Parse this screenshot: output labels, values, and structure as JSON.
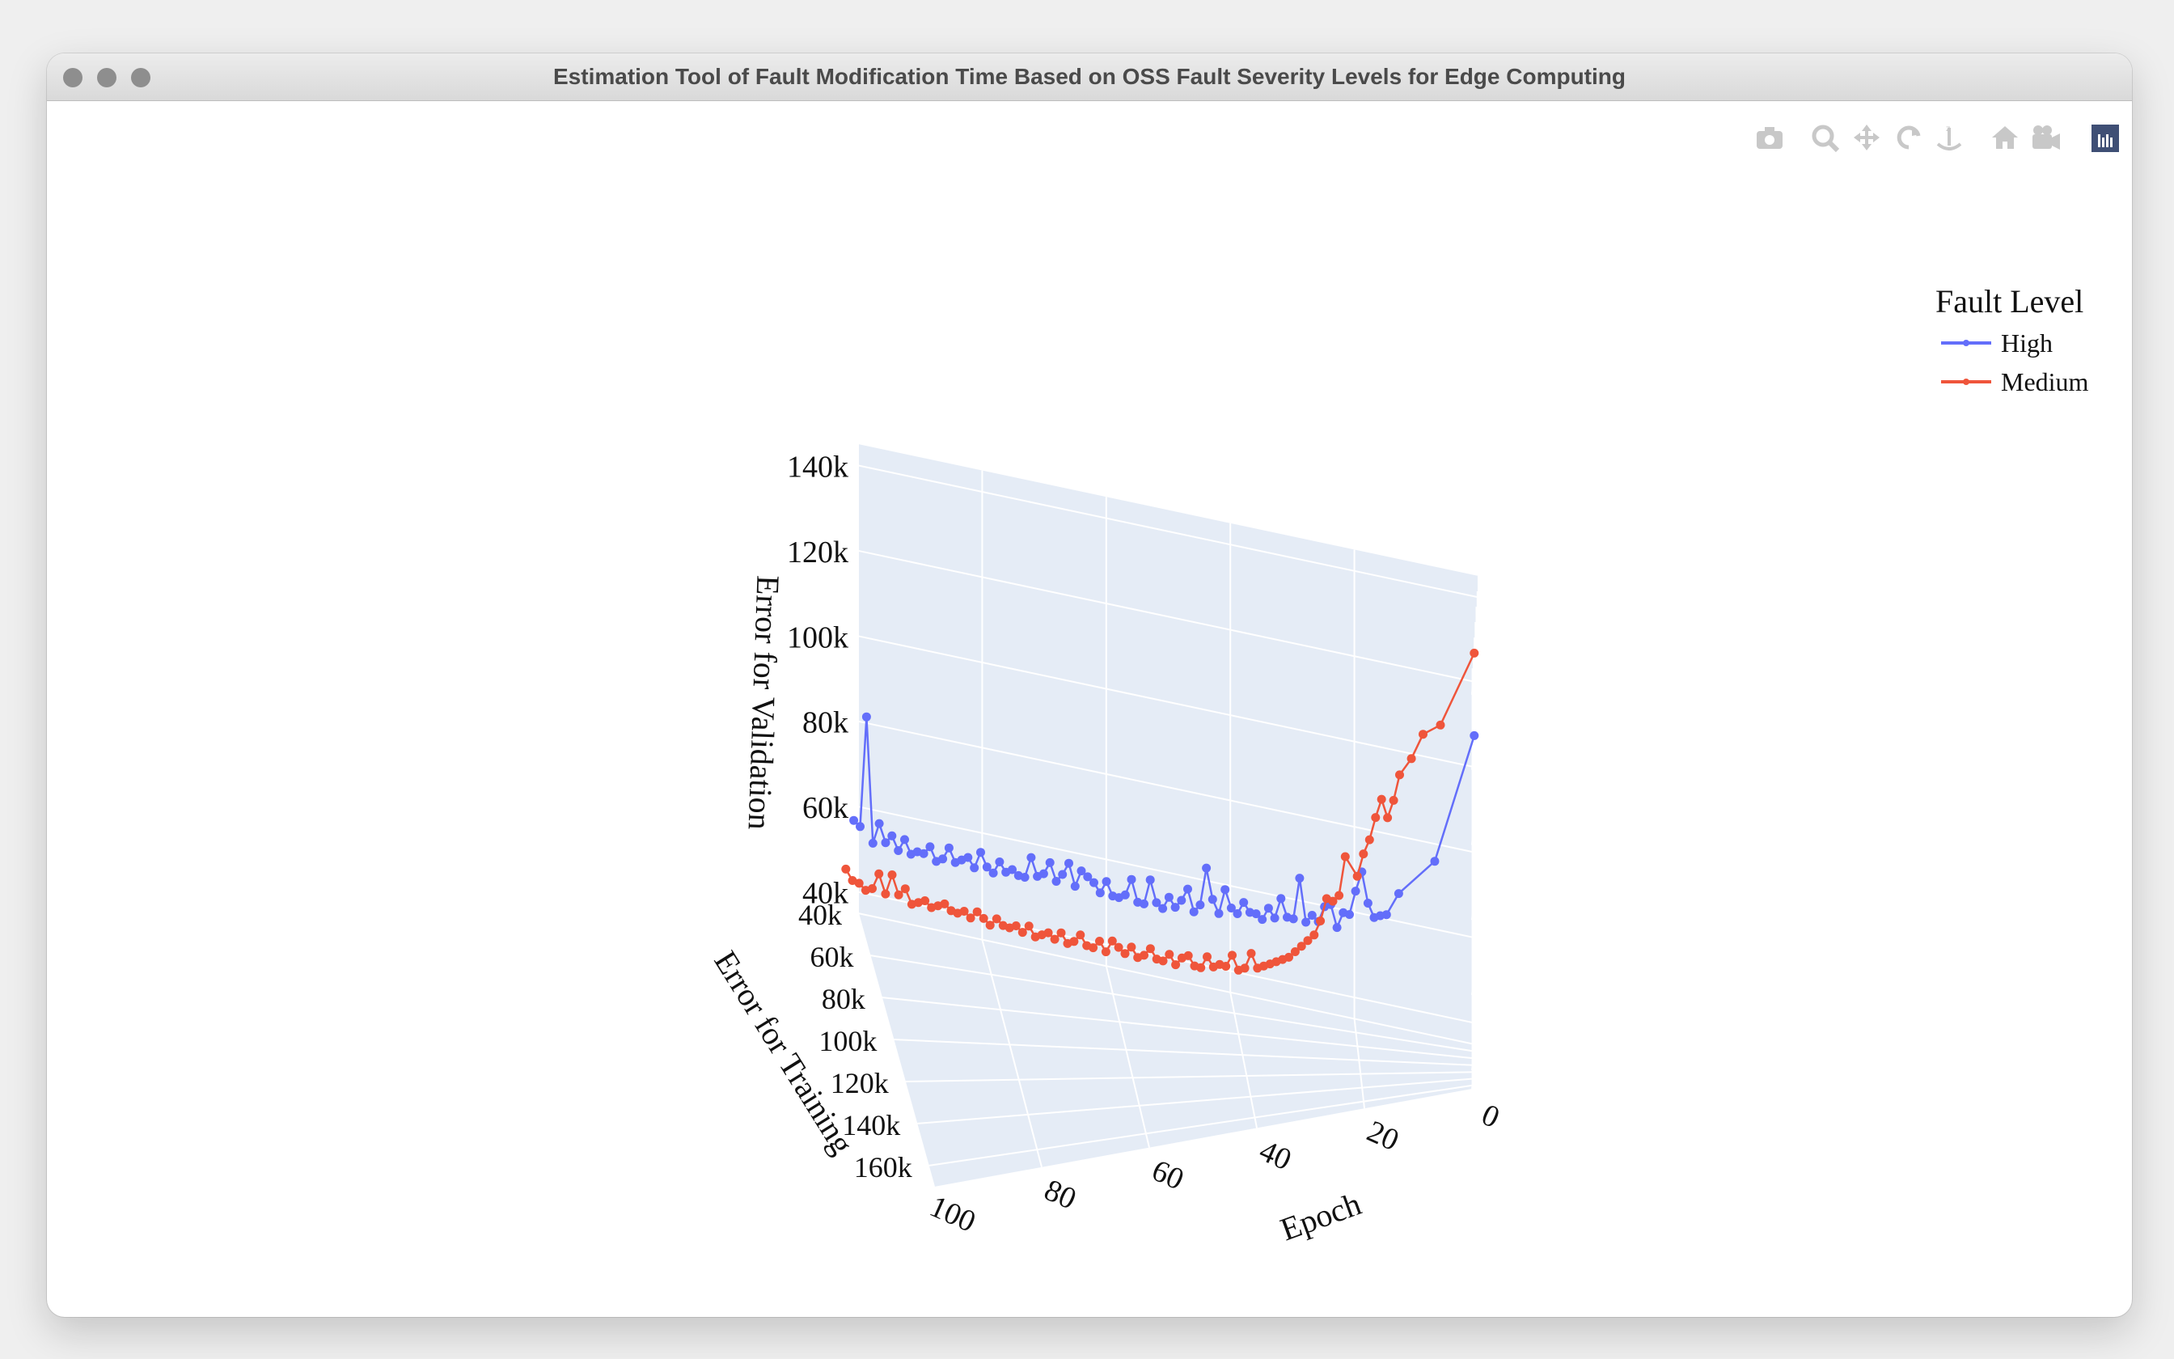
{
  "window": {
    "title": "Estimation Tool of Fault Modification Time Based on OSS Fault Severity Levels for Edge Computing"
  },
  "modebar": {
    "icons": [
      "camera-icon",
      "zoom-icon",
      "pan-icon",
      "orbit-rotation-icon",
      "turntable-rotation-icon",
      "reset-home-icon",
      "camera-view-icon",
      "plotly-logo-icon"
    ],
    "logo_color": "#3f4f75",
    "icon_color": "#c8c8c8"
  },
  "chart_data": {
    "type": "scatter3d-lines",
    "legend": {
      "title": "Fault Level",
      "position": "top-right"
    },
    "axes": {
      "x": {
        "title": "Epoch",
        "range": [
          0,
          100
        ],
        "ticks": [
          "0",
          "20",
          "40",
          "60",
          "80",
          "100"
        ],
        "reversed": true
      },
      "y": {
        "title": "Error for Training",
        "range": [
          40000,
          170000
        ],
        "ticks": [
          "40k",
          "60k",
          "80k",
          "100k",
          "120k",
          "140k",
          "160k"
        ]
      },
      "z": {
        "title": "Error for Validation",
        "range": [
          35000,
          145000
        ],
        "ticks": [
          "40k",
          "60k",
          "80k",
          "100k",
          "120k",
          "140k"
        ]
      }
    },
    "scene_background": "#e5ecf6",
    "grid": true,
    "series": [
      {
        "name": "High",
        "color": "#636efa",
        "points": [
          [
            0,
            125000,
            121000
          ],
          [
            7,
            80000,
            82000
          ],
          [
            13,
            67000,
            71000
          ],
          [
            15,
            64000,
            65000
          ],
          [
            16,
            61000,
            64000
          ],
          [
            17,
            59000,
            63000
          ],
          [
            18,
            58000,
            66000
          ],
          [
            19,
            57000,
            73000
          ],
          [
            20,
            56000,
            68000
          ],
          [
            21,
            55000,
            62000
          ],
          [
            22,
            54000,
            62000
          ],
          [
            23,
            53000,
            58000
          ],
          [
            24,
            52000,
            63000
          ],
          [
            25,
            51000,
            62000
          ],
          [
            26,
            50000,
            58000
          ],
          [
            27,
            49000,
            59000
          ],
          [
            28,
            48500,
            57000
          ],
          [
            29,
            48000,
            67000
          ],
          [
            30,
            47500,
            57000
          ],
          [
            31,
            47000,
            57000
          ],
          [
            32,
            46500,
            61000
          ],
          [
            33,
            46000,
            56000
          ],
          [
            34,
            45800,
            58000
          ],
          [
            35,
            45600,
            55000
          ],
          [
            36,
            45400,
            56000
          ],
          [
            37,
            45200,
            56000
          ],
          [
            38,
            45000,
            58000
          ],
          [
            39,
            44800,
            55000
          ],
          [
            40,
            44600,
            56000
          ],
          [
            41,
            44400,
            60000
          ],
          [
            42,
            44200,
            54000
          ],
          [
            43,
            44000,
            57000
          ],
          [
            44,
            43800,
            64000
          ],
          [
            45,
            43600,
            55000
          ],
          [
            46,
            43400,
            53000
          ],
          [
            47,
            43200,
            58000
          ],
          [
            48,
            43000,
            55000
          ],
          [
            49,
            42800,
            53000
          ],
          [
            50,
            42600,
            55000
          ],
          [
            51,
            42400,
            52000
          ],
          [
            52,
            42200,
            53000
          ],
          [
            53,
            42000,
            58000
          ],
          [
            54,
            41800,
            52000
          ],
          [
            55,
            41600,
            52000
          ],
          [
            56,
            41400,
            57000
          ],
          [
            57,
            41200,
            53000
          ],
          [
            58,
            41000,
            52000
          ],
          [
            59,
            40800,
            52000
          ],
          [
            60,
            40600,
            55000
          ],
          [
            61,
            40400,
            52000
          ],
          [
            62,
            40200,
            54000
          ],
          [
            63,
            40000,
            55000
          ],
          [
            64,
            39800,
            56000
          ],
          [
            65,
            39600,
            52000
          ],
          [
            66,
            39400,
            57000
          ],
          [
            67,
            39200,
            54000
          ],
          [
            68,
            39000,
            52000
          ],
          [
            69,
            38800,
            56000
          ],
          [
            70,
            38600,
            53000
          ],
          [
            71,
            38400,
            52000
          ],
          [
            72,
            38200,
            56000
          ],
          [
            73,
            38000,
            51000
          ],
          [
            74,
            37800,
            51000
          ],
          [
            75,
            37600,
            52000
          ],
          [
            76,
            37400,
            51000
          ],
          [
            77,
            37200,
            53000
          ],
          [
            78,
            37000,
            50000
          ],
          [
            79,
            36800,
            51000
          ],
          [
            80,
            36600,
            54000
          ],
          [
            81,
            36400,
            50000
          ],
          [
            82,
            36200,
            52000
          ],
          [
            83,
            36000,
            51000
          ],
          [
            84,
            35800,
            50000
          ],
          [
            85,
            35600,
            53000
          ],
          [
            86,
            35400,
            50000
          ],
          [
            87,
            35200,
            49000
          ],
          [
            88,
            35000,
            52000
          ],
          [
            89,
            34800,
            50000
          ],
          [
            90,
            34600,
            50000
          ],
          [
            91,
            34400,
            49000
          ],
          [
            92,
            34200,
            52000
          ],
          [
            93,
            34000,
            49000
          ],
          [
            94,
            33800,
            52000
          ],
          [
            95,
            33600,
            50000
          ],
          [
            96,
            33400,
            54000
          ],
          [
            97,
            33200,
            49000
          ],
          [
            98,
            33000,
            78000
          ],
          [
            99,
            32800,
            52000
          ],
          [
            100,
            32600,
            53000
          ]
        ]
      },
      {
        "name": "Medium",
        "color": "#ef553b",
        "points": [
          [
            0,
            125000,
            142000
          ],
          [
            6,
            110000,
            121000
          ],
          [
            9,
            102000,
            117000
          ],
          [
            11,
            98000,
            110000
          ],
          [
            13,
            94000,
            105000
          ],
          [
            14,
            91000,
            98000
          ],
          [
            15,
            88000,
            93000
          ],
          [
            16,
            86000,
            97000
          ],
          [
            17,
            84000,
            92000
          ],
          [
            18,
            82000,
            86000
          ],
          [
            19,
            80000,
            82000
          ],
          [
            20,
            78000,
            76000
          ],
          [
            22,
            76000,
            80000
          ],
          [
            23,
            74000,
            70000
          ],
          [
            24,
            72000,
            68000
          ],
          [
            25,
            70000,
            68000
          ],
          [
            26,
            68000,
            62000
          ],
          [
            27,
            66000,
            58000
          ],
          [
            28,
            64000,
            56000
          ],
          [
            29,
            62000,
            54000
          ],
          [
            30,
            60000,
            52000
          ],
          [
            31,
            58000,
            50000
          ],
          [
            32,
            57000,
            49000
          ],
          [
            33,
            56000,
            48000
          ],
          [
            34,
            55000,
            47000
          ],
          [
            35,
            54000,
            46000
          ],
          [
            36,
            53000,
            45000
          ],
          [
            37,
            52000,
            48000
          ],
          [
            38,
            51000,
            44000
          ],
          [
            39,
            50000,
            43000
          ],
          [
            40,
            49000,
            46000
          ],
          [
            41,
            48500,
            43000
          ],
          [
            42,
            48000,
            43000
          ],
          [
            43,
            47500,
            42000
          ],
          [
            44,
            47000,
            44000
          ],
          [
            45,
            46500,
            41000
          ],
          [
            46,
            46000,
            41000
          ],
          [
            47,
            45500,
            43000
          ],
          [
            48,
            45000,
            42000
          ],
          [
            49,
            44500,
            40000
          ],
          [
            50,
            44000,
            42000
          ],
          [
            51,
            43500,
            40000
          ],
          [
            52,
            43000,
            40000
          ],
          [
            53,
            42500,
            42000
          ],
          [
            54,
            42000,
            40000
          ],
          [
            55,
            41500,
            39000
          ],
          [
            56,
            41000,
            41000
          ],
          [
            57,
            40500,
            39000
          ],
          [
            58,
            40000,
            40000
          ],
          [
            59,
            39500,
            41000
          ],
          [
            60,
            39000,
            38000
          ],
          [
            61,
            38500,
            40000
          ],
          [
            62,
            38000,
            38000
          ],
          [
            63,
            37500,
            38000
          ],
          [
            64,
            37000,
            40000
          ],
          [
            65,
            36500,
            38000
          ],
          [
            66,
            36000,
            37000
          ],
          [
            67,
            35500,
            39000
          ],
          [
            68,
            35000,
            37000
          ],
          [
            69,
            34500,
            38000
          ],
          [
            70,
            34000,
            37000
          ],
          [
            71,
            33500,
            36000
          ],
          [
            72,
            33000,
            38000
          ],
          [
            73,
            32500,
            36000
          ],
          [
            74,
            32000,
            37000
          ],
          [
            75,
            31500,
            36000
          ],
          [
            76,
            31000,
            36000
          ],
          [
            77,
            30500,
            37000
          ],
          [
            78,
            30000,
            35000
          ],
          [
            79,
            29500,
            36000
          ],
          [
            80,
            29000,
            37000
          ],
          [
            81,
            28500,
            35000
          ],
          [
            82,
            28000,
            36000
          ],
          [
            83,
            27500,
            35000
          ],
          [
            84,
            27000,
            35000
          ],
          [
            85,
            26500,
            36000
          ],
          [
            86,
            26000,
            35000
          ],
          [
            87,
            25500,
            34000
          ],
          [
            88,
            25000,
            35000
          ],
          [
            89,
            24500,
            34000
          ],
          [
            90,
            24000,
            33000
          ],
          [
            91,
            23500,
            36000
          ],
          [
            92,
            23000,
            34000
          ],
          [
            93,
            22500,
            38000
          ],
          [
            94,
            22000,
            33000
          ],
          [
            95,
            21500,
            37000
          ],
          [
            96,
            21000,
            33000
          ],
          [
            97,
            20500,
            32000
          ],
          [
            98,
            20000,
            33000
          ],
          [
            99,
            19500,
            33000
          ],
          [
            100,
            19000,
            35000
          ]
        ]
      }
    ]
  }
}
